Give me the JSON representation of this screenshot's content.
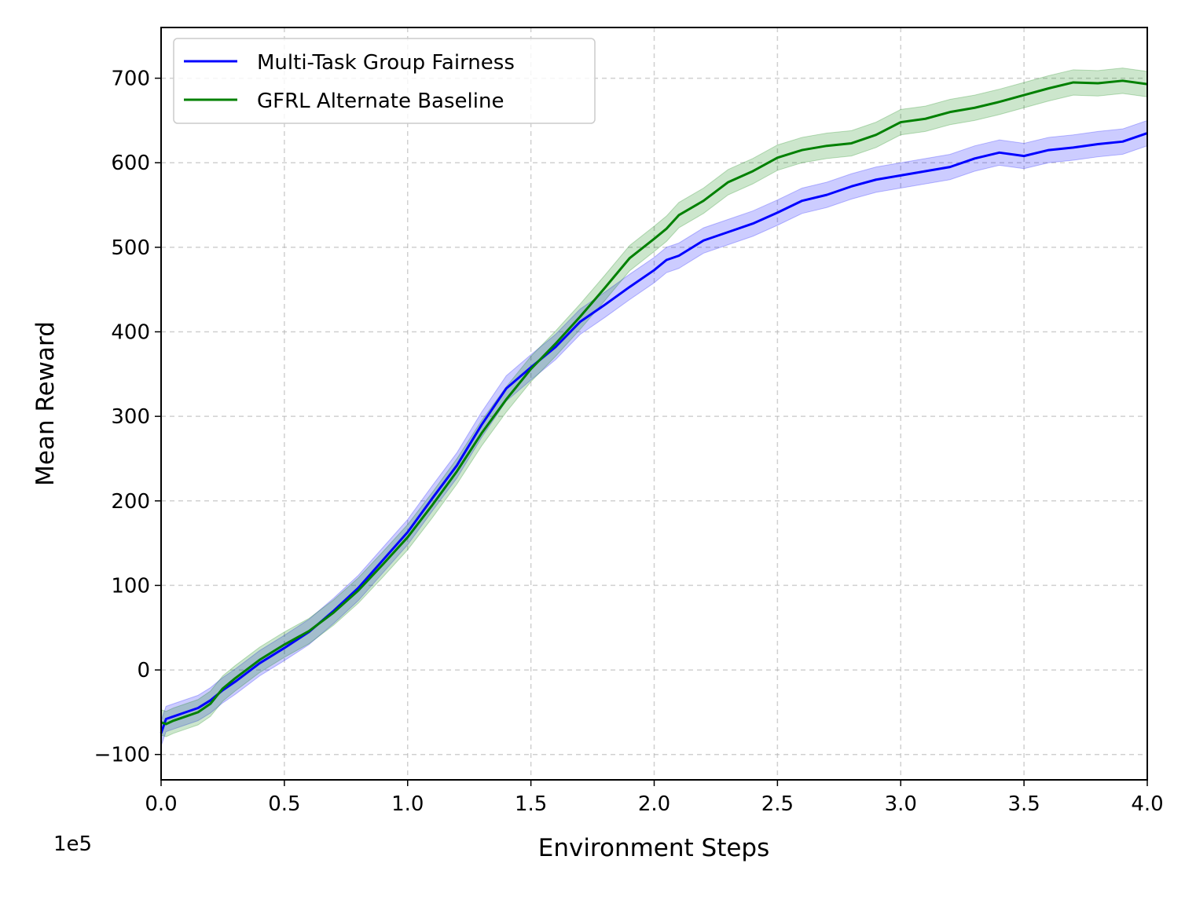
{
  "chart_data": {
    "type": "line",
    "xlabel": "Environment Steps",
    "ylabel": "Mean Reward",
    "x_offset_label": "1e5",
    "xlim": [
      0,
      4.0
    ],
    "ylim": [
      -130,
      760
    ],
    "x_ticks": [
      0.0,
      0.5,
      1.0,
      1.5,
      2.0,
      2.5,
      3.0,
      3.5,
      4.0
    ],
    "x_tick_labels": [
      "0.0",
      "0.5",
      "1.0",
      "1.5",
      "2.0",
      "2.5",
      "3.0",
      "3.5",
      "4.0"
    ],
    "y_ticks": [
      -100,
      0,
      100,
      200,
      300,
      400,
      500,
      600,
      700
    ],
    "y_tick_labels": [
      "−100",
      "0",
      "100",
      "200",
      "300",
      "400",
      "500",
      "600",
      "700"
    ],
    "grid": true,
    "legend_position": "top-left",
    "series": [
      {
        "name": "Multi-Task Group Fairness",
        "color": "#0000ff",
        "x": [
          0.0,
          0.02,
          0.05,
          0.1,
          0.15,
          0.2,
          0.25,
          0.3,
          0.4,
          0.5,
          0.6,
          0.7,
          0.8,
          0.9,
          1.0,
          1.1,
          1.2,
          1.3,
          1.4,
          1.5,
          1.6,
          1.7,
          1.8,
          1.9,
          2.0,
          2.05,
          2.1,
          2.2,
          2.3,
          2.4,
          2.5,
          2.6,
          2.7,
          2.8,
          2.9,
          3.0,
          3.1,
          3.2,
          3.3,
          3.4,
          3.5,
          3.6,
          3.7,
          3.8,
          3.9,
          4.0
        ],
        "y": [
          -75,
          -58,
          -55,
          -50,
          -45,
          -36,
          -24,
          -14,
          8,
          26,
          45,
          70,
          97,
          130,
          163,
          203,
          242,
          290,
          333,
          358,
          382,
          412,
          432,
          453,
          473,
          485,
          490,
          508,
          518,
          528,
          541,
          555,
          562,
          572,
          580,
          585,
          590,
          595,
          605,
          612,
          608,
          615,
          618,
          622,
          625,
          635
        ],
        "band": 15
      },
      {
        "name": "GFRL Alternate Baseline",
        "color": "#008000",
        "x": [
          0.0,
          0.02,
          0.05,
          0.1,
          0.15,
          0.2,
          0.25,
          0.3,
          0.4,
          0.5,
          0.6,
          0.7,
          0.8,
          0.9,
          1.0,
          1.1,
          1.2,
          1.3,
          1.4,
          1.5,
          1.6,
          1.7,
          1.8,
          1.9,
          2.0,
          2.05,
          2.1,
          2.2,
          2.3,
          2.4,
          2.5,
          2.6,
          2.7,
          2.8,
          2.9,
          3.0,
          3.1,
          3.2,
          3.3,
          3.4,
          3.5,
          3.6,
          3.7,
          3.8,
          3.9,
          4.0
        ],
        "y": [
          -62,
          -64,
          -60,
          -55,
          -50,
          -40,
          -22,
          -10,
          12,
          30,
          46,
          68,
          94,
          125,
          157,
          195,
          235,
          280,
          320,
          356,
          386,
          418,
          452,
          487,
          510,
          522,
          538,
          555,
          577,
          590,
          606,
          615,
          620,
          623,
          633,
          648,
          652,
          660,
          665,
          672,
          680,
          688,
          695,
          694,
          697,
          693
        ],
        "band": 15
      }
    ]
  }
}
